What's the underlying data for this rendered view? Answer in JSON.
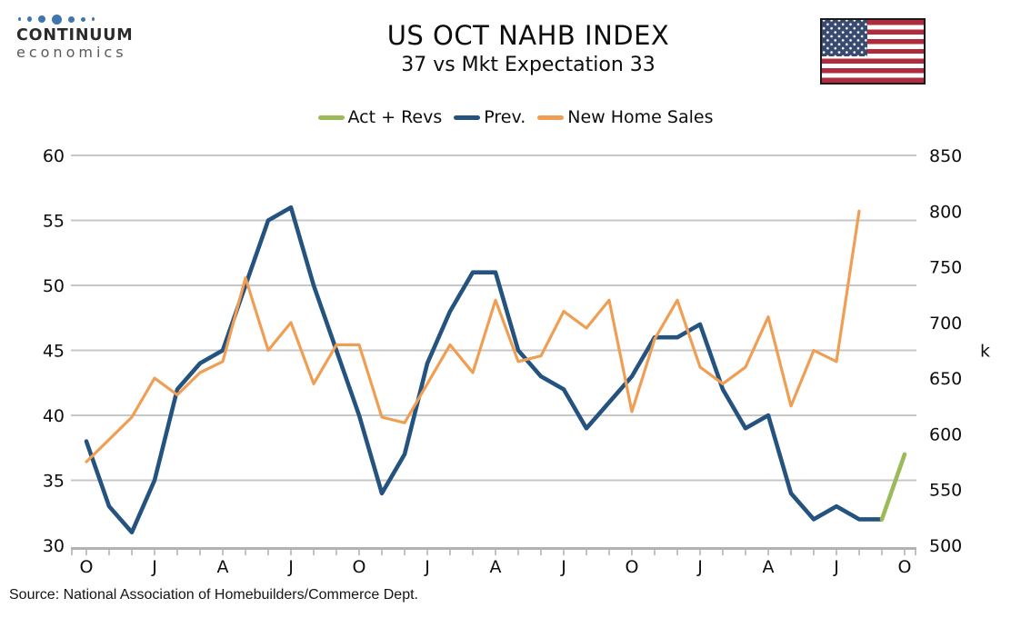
{
  "header": {
    "logo": {
      "brand": "CONTINUUM",
      "brand_sub": "economics",
      "dot_color": "#3f76ab"
    }
  },
  "chart_data": {
    "type": "line",
    "title": "US OCT NAHB INDEX",
    "subtitle": "37 vs Mkt Expectation 33",
    "source": "Source: National Association of Homebuilders/Commerce Dept.",
    "grid": "horizontal",
    "legend_position": "top",
    "x_axis": {
      "unit": "month",
      "n_points": 37,
      "range": "Oct to Oct, 3 years, monthly",
      "tick_labels": [
        "O",
        "J",
        "A",
        "J",
        "O",
        "J",
        "A",
        "J",
        "O",
        "J",
        "A",
        "J",
        "O"
      ],
      "label_every": 3
    },
    "y_left": {
      "min": 30,
      "max": 60,
      "ticks": [
        60,
        55,
        50,
        45,
        40,
        35,
        30
      ]
    },
    "y_right": {
      "min": 500,
      "max": 850,
      "ticks": [
        850,
        800,
        750,
        700,
        650,
        600,
        550,
        500
      ],
      "unit_label": "k"
    },
    "series": [
      {
        "name": "Act + Revs",
        "axis": "left",
        "color": "#9bbb59",
        "values": [
          null,
          null,
          null,
          null,
          null,
          null,
          null,
          null,
          null,
          null,
          null,
          null,
          null,
          null,
          null,
          null,
          null,
          null,
          null,
          null,
          null,
          null,
          null,
          null,
          null,
          null,
          null,
          null,
          null,
          null,
          null,
          null,
          null,
          null,
          null,
          32,
          37
        ]
      },
      {
        "name": "Prev.",
        "axis": "left",
        "color": "#25537f",
        "values": [
          38,
          33,
          31,
          35,
          42,
          44,
          45,
          50,
          55,
          56,
          50,
          45,
          40,
          34,
          37,
          44,
          48,
          51,
          51,
          45,
          43,
          42,
          39,
          41,
          43,
          46,
          46,
          47,
          42,
          39,
          40,
          34,
          32,
          33,
          32,
          32,
          null
        ]
      },
      {
        "name": "New Home Sales",
        "axis": "right",
        "color": "#f09e53",
        "values": [
          575,
          595,
          615,
          650,
          635,
          655,
          665,
          740,
          675,
          700,
          645,
          680,
          680,
          615,
          610,
          645,
          680,
          655,
          720,
          665,
          670,
          710,
          695,
          720,
          620,
          685,
          720,
          660,
          645,
          660,
          705,
          625,
          675,
          665,
          800,
          null,
          null
        ]
      }
    ]
  }
}
